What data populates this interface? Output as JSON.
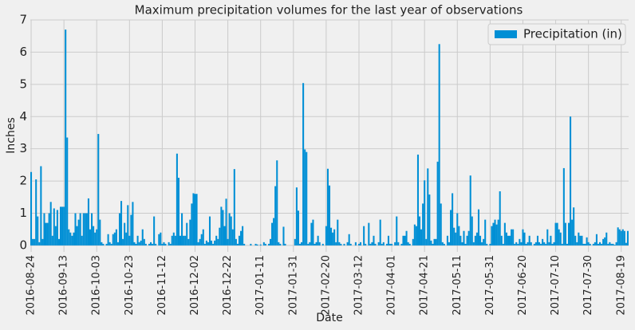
{
  "chart_data": {
    "type": "bar",
    "title": "Maximum precipitation volumes for the last year of observations",
    "x_label": "Date",
    "y_label": "Inches",
    "series": [
      {
        "name": "Precipitation (in)",
        "color": "#008fd5",
        "values": [
          2.28,
          0.2,
          0.2,
          2.05,
          0.9,
          0.1,
          2.46,
          0.2,
          1.0,
          0.7,
          0.7,
          1.0,
          1.35,
          0.3,
          1.15,
          0.6,
          1.1,
          0.2,
          1.2,
          1.2,
          1.2,
          6.7,
          3.35,
          0.5,
          0.4,
          0.3,
          0.4,
          1.0,
          0.6,
          0.8,
          1.0,
          0.3,
          1.0,
          1.0,
          1.0,
          1.46,
          0.5,
          1.0,
          0.6,
          0.4,
          0.5,
          3.46,
          0.8,
          0.1,
          0.05,
          0,
          0.05,
          0.35,
          0.1,
          0.05,
          0.35,
          0.4,
          0.5,
          0.1,
          1.0,
          1.38,
          0.2,
          0.7,
          0.4,
          1.25,
          0.3,
          0.95,
          1.35,
          0.1,
          0.05,
          0.3,
          0.1,
          0.15,
          0.5,
          0.2,
          0.05,
          0,
          0.05,
          0.1,
          0.05,
          0.9,
          0.05,
          0,
          0.35,
          0.4,
          0.05,
          0.1,
          0.05,
          0,
          0.1,
          0.05,
          0.3,
          0.4,
          0.3,
          2.85,
          2.1,
          0.3,
          1.0,
          0.3,
          0.3,
          0.7,
          0.2,
          0.8,
          1.3,
          1.62,
          1.6,
          1.6,
          0.1,
          0.2,
          0.35,
          0.5,
          0.05,
          0.15,
          0.1,
          0.9,
          0.15,
          0.05,
          0.15,
          0.3,
          0.2,
          0.55,
          1.2,
          1.1,
          0.6,
          1.45,
          0.2,
          1.0,
          0.9,
          0.5,
          2.37,
          0.2,
          0.05,
          0.3,
          0.45,
          0.6,
          0.05,
          0,
          0,
          0,
          0.05,
          0,
          0,
          0.05,
          0.03,
          0,
          0.03,
          0,
          0.1,
          0.05,
          0,
          0.05,
          0.2,
          0.7,
          0.85,
          1.84,
          2.64,
          0.1,
          0.05,
          0,
          0.58,
          0.05,
          0,
          0,
          0,
          0,
          0,
          0.2,
          1.8,
          1.08,
          0.05,
          0.1,
          5.04,
          2.98,
          2.9,
          0.05,
          0.1,
          0.7,
          0.8,
          0.05,
          0.1,
          0.3,
          0.1,
          0,
          0.05,
          0,
          0.6,
          2.38,
          1.86,
          0.55,
          0.4,
          0.5,
          0.1,
          0.8,
          0.1,
          0.05,
          0,
          0.05,
          0,
          0.1,
          0.35,
          0.05,
          0,
          0,
          0.1,
          0,
          0.05,
          0.1,
          0,
          0.6,
          0.05,
          0,
          0.7,
          0.05,
          0.1,
          0.3,
          0.05,
          0,
          0.1,
          0.8,
          0.05,
          0.1,
          0,
          0.05,
          0.3,
          0.05,
          0.05,
          0,
          0.1,
          0.9,
          0.1,
          0,
          0.05,
          0.3,
          0.3,
          0.45,
          0.1,
          0.05,
          0,
          0.2,
          0.65,
          0.6,
          2.82,
          0.9,
          0.5,
          1.3,
          2.02,
          0.2,
          2.39,
          1.58,
          0.15,
          0.05,
          0.2,
          0.2,
          2.6,
          6.25,
          1.3,
          0.1,
          0.05,
          0,
          0.3,
          0.1,
          1.1,
          1.62,
          0.55,
          0.4,
          1.0,
          0.6,
          0.3,
          0.1,
          0.45,
          0.05,
          0.3,
          0.45,
          2.17,
          0.9,
          0.1,
          0.3,
          0.4,
          1.12,
          0.3,
          0.1,
          0.2,
          0.8,
          0.05,
          0,
          0.05,
          0.6,
          0.7,
          0.8,
          0.65,
          0.8,
          1.68,
          0.3,
          0.05,
          0.7,
          0.4,
          0.3,
          0.3,
          0.5,
          0.5,
          0.05,
          0.1,
          0.05,
          0.2,
          0.1,
          0.5,
          0.4,
          0.05,
          0.1,
          0.3,
          0.1,
          0,
          0.05,
          0.1,
          0.3,
          0.1,
          0.05,
          0.2,
          0.1,
          0.05,
          0.5,
          0.1,
          0.3,
          0.05,
          0.1,
          0.7,
          0.7,
          0.5,
          0.4,
          0.05,
          2.4,
          0.7,
          0.05,
          0.7,
          4.0,
          0.8,
          1.18,
          0.3,
          0.1,
          0.4,
          0.3,
          0.3,
          0.05,
          0.05,
          0.25,
          0.1,
          0.05,
          0,
          0.05,
          0.1,
          0.35,
          0.05,
          0.1,
          0.05,
          0.2,
          0.25,
          0.4,
          0.05,
          0.1,
          0.05,
          0.05,
          0.02,
          0.1,
          0.56,
          0.5,
          0.45,
          0.5,
          0.45,
          0.08,
          0.45
        ]
      }
    ],
    "categories": [
      "2016-08-24",
      null,
      null,
      null,
      null,
      null,
      null,
      null,
      null,
      null,
      null,
      null,
      null,
      null,
      null,
      null,
      null,
      null,
      null,
      null,
      "2016-09-13",
      null,
      null,
      null,
      null,
      null,
      null,
      null,
      null,
      null,
      null,
      null,
      null,
      null,
      null,
      null,
      null,
      null,
      null,
      null,
      "2016-10-03",
      null,
      null,
      null,
      null,
      null,
      null,
      null,
      null,
      null,
      null,
      null,
      null,
      null,
      null,
      null,
      null,
      null,
      null,
      null,
      "2016-10-23",
      null,
      null,
      null,
      null,
      null,
      null,
      null,
      null,
      null,
      null,
      null,
      null,
      null,
      null,
      null,
      null,
      null,
      null,
      null,
      "2016-11-12",
      null,
      null,
      null,
      null,
      null,
      null,
      null,
      null,
      null,
      null,
      null,
      null,
      null,
      null,
      null,
      null,
      null,
      null,
      null,
      "2016-12-02",
      null,
      null,
      null,
      null,
      null,
      null,
      null,
      null,
      null,
      null,
      null,
      null,
      null,
      null,
      null,
      null,
      null,
      null,
      null,
      "2016-12-22",
      null,
      null,
      null,
      null,
      null,
      null,
      null,
      null,
      null,
      null,
      null,
      null,
      null,
      null,
      null,
      null,
      null,
      null,
      null,
      "2017-01-11",
      null,
      null,
      null,
      null,
      null,
      null,
      null,
      null,
      null,
      null,
      null,
      null,
      null,
      null,
      null,
      null,
      null,
      null,
      null,
      "2017-01-31",
      null,
      null,
      null,
      null,
      null,
      null,
      null,
      null,
      null,
      null,
      null,
      null,
      null,
      null,
      null,
      null,
      null,
      null,
      null,
      "2017-02-20",
      null,
      null,
      null,
      null,
      null,
      null,
      null,
      null,
      null,
      null,
      null,
      null,
      null,
      null,
      null,
      null,
      null,
      null,
      null,
      "2017-03-12",
      null,
      null,
      null,
      null,
      null,
      null,
      null,
      null,
      null,
      null,
      null,
      null,
      null,
      null,
      null,
      null,
      null,
      null,
      null,
      "2017-04-01",
      null,
      null,
      null,
      null,
      null,
      null,
      null,
      null,
      null,
      null,
      null,
      null,
      null,
      null,
      null,
      null,
      null,
      null,
      null,
      "2017-04-21",
      null,
      null,
      null,
      null,
      null,
      null,
      null,
      null,
      null,
      null,
      null,
      null,
      null,
      null,
      null,
      null,
      null,
      null,
      null,
      "2017-05-11",
      null,
      null,
      null,
      null,
      null,
      null,
      null,
      null,
      null,
      null,
      null,
      null,
      null,
      null,
      null,
      null,
      null,
      null,
      null,
      "2017-05-31",
      null,
      null,
      null,
      null,
      null,
      null,
      null,
      null,
      null,
      null,
      null,
      null,
      null,
      null,
      null,
      null,
      null,
      null,
      null,
      "2017-06-20",
      null,
      null,
      null,
      null,
      null,
      null,
      null,
      null,
      null,
      null,
      null,
      null,
      null,
      null,
      null,
      null,
      null,
      null,
      null,
      "2017-07-10",
      null,
      null,
      null,
      null,
      null,
      null,
      null,
      null,
      null,
      null,
      null,
      null,
      null,
      null,
      null,
      null,
      null,
      null,
      null,
      "2017-07-30",
      null,
      null,
      null,
      null,
      null,
      null,
      null,
      null,
      null,
      null,
      null,
      null,
      null,
      null,
      null,
      null,
      null,
      null,
      null,
      "2017-08-19",
      null,
      null,
      null,
      null
    ],
    "ylim": [
      -0.2,
      7
    ],
    "yticks": [
      0,
      1,
      2,
      3,
      4,
      5,
      6,
      7
    ],
    "grid": true,
    "legend": "upper right"
  }
}
